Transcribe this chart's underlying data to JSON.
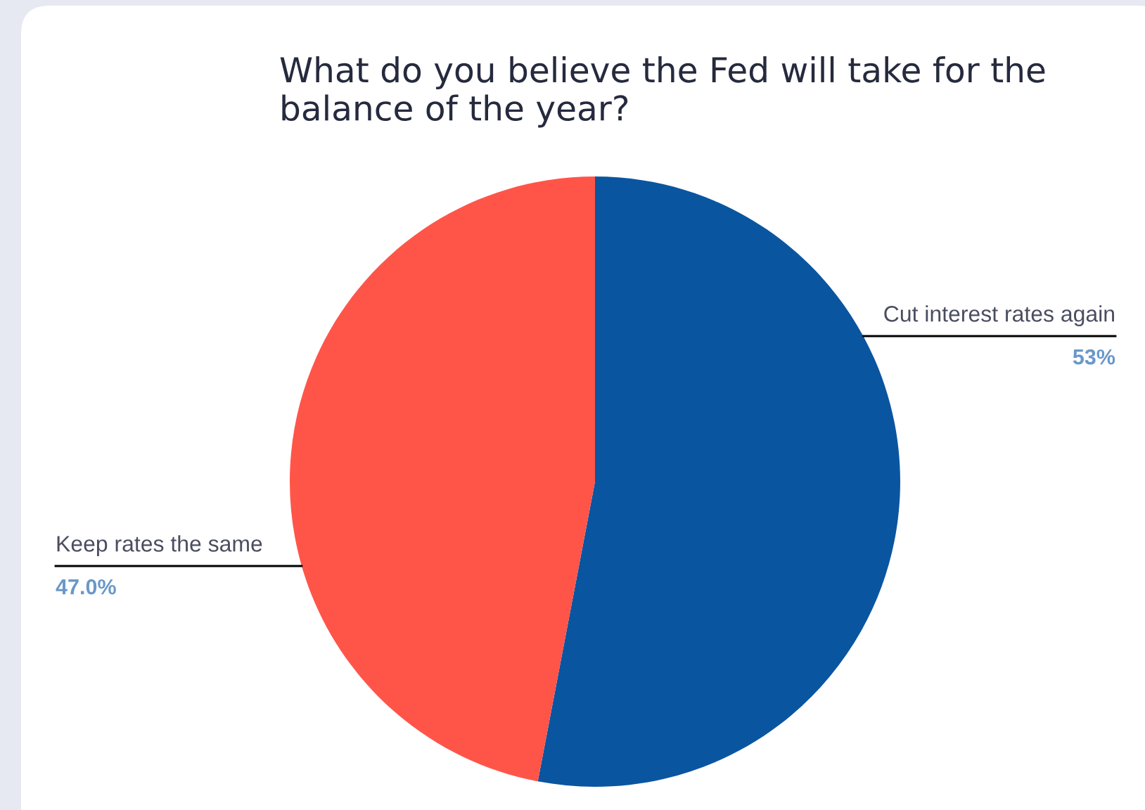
{
  "chart_data": {
    "type": "pie",
    "title": "What do you believe the Fed will take for the balance of the year?",
    "categories": [
      "Cut interest rates again",
      "Keep rates the same"
    ],
    "values": [
      53,
      47.0
    ],
    "colors": [
      "#0a55a0",
      "#ff5549"
    ],
    "value_labels": [
      "53%",
      "47.0%"
    ]
  }
}
